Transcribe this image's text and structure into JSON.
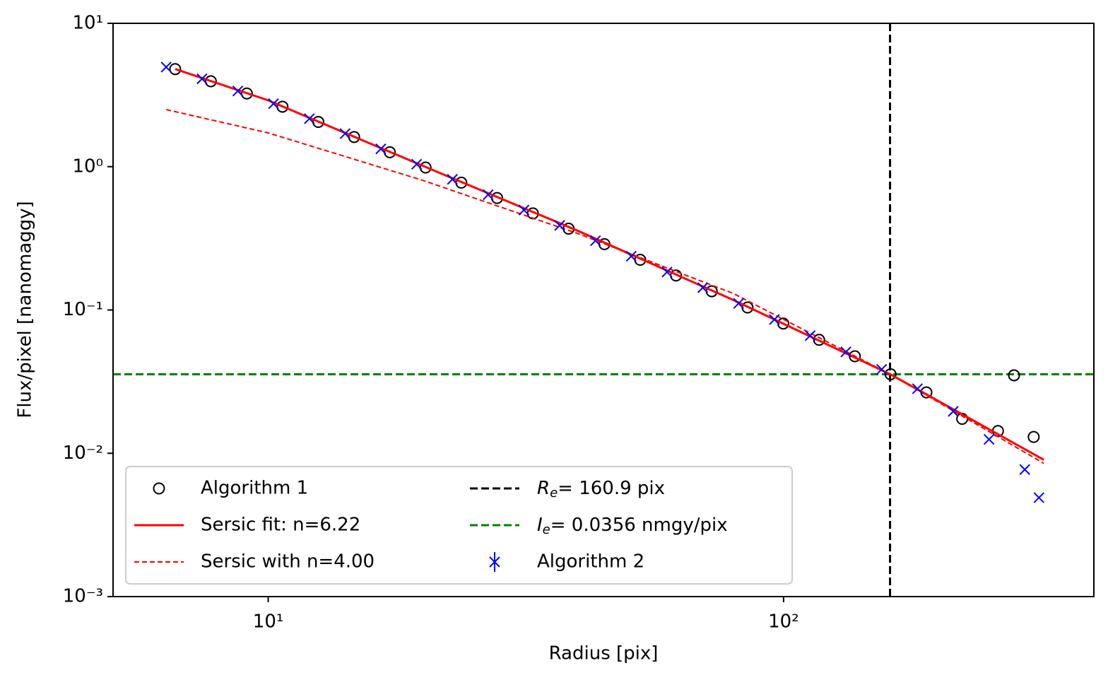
{
  "chart_data": {
    "type": "line",
    "xlabel": "Radius [pix]",
    "ylabel": "Flux/pixel [nanomaggy]",
    "xscale": "log",
    "yscale": "log",
    "xlim": [
      5,
      400
    ],
    "ylim": [
      0.001,
      10
    ],
    "xticks": [
      {
        "value": 10,
        "label": "10¹"
      },
      {
        "value": 100,
        "label": "10²"
      }
    ],
    "yticks": [
      {
        "value": 0.001,
        "label": "10⁻³"
      },
      {
        "value": 0.01,
        "label": "10⁻²"
      },
      {
        "value": 0.1,
        "label": "10⁻¹"
      },
      {
        "value": 1,
        "label": "10⁰"
      },
      {
        "value": 10,
        "label": "10¹"
      }
    ],
    "legend_loc": "lower left",
    "series": [
      {
        "name": "Algorithm 1",
        "color": "#000000",
        "marker": "circle",
        "linestyle": "none",
        "x": [
          6.6,
          7.74,
          9.09,
          10.66,
          12.51,
          14.68,
          17.22,
          20.2,
          23.7,
          27.81,
          32.63,
          38.28,
          44.92,
          52.7,
          61.84,
          72.55,
          85.13,
          99.88,
          117.2,
          137.5,
          161.3,
          189.3,
          222.1,
          260.6,
          280,
          305.7
        ],
        "values": [
          4.79,
          3.94,
          3.24,
          2.62,
          2.05,
          1.61,
          1.26,
          0.986,
          0.773,
          0.604,
          0.472,
          0.369,
          0.288,
          0.224,
          0.174,
          0.135,
          0.104,
          0.0804,
          0.0619,
          0.0475,
          0.0356,
          0.0266,
          0.0174,
          0.0143,
          0.035,
          0.013
        ]
      },
      {
        "name": "Sersic fit: n=6.22",
        "color": "#ff0000",
        "marker": "none",
        "linestyle": "solid",
        "x": [
          6.6,
          10,
          20,
          40,
          80,
          161,
          320
        ],
        "values": [
          4.8,
          2.9,
          1.01,
          0.355,
          0.117,
          0.0356,
          0.009
        ]
      },
      {
        "name": "Sersic with n=4.00",
        "color": "#ff0000",
        "marker": "none",
        "linestyle": "dashed",
        "x": [
          6.34,
          10,
          20,
          40,
          80,
          161,
          320
        ],
        "values": [
          2.5,
          1.72,
          0.8,
          0.34,
          0.13,
          0.0356,
          0.0085
        ]
      },
      {
        "name": "Algorithm 2",
        "color": "#0000ff",
        "marker": "x",
        "linestyle": "none",
        "x": [
          6.34,
          7.44,
          8.73,
          10.24,
          12.02,
          14.1,
          16.54,
          19.41,
          22.77,
          26.72,
          31.35,
          36.78,
          43.16,
          50.63,
          59.41,
          69.7,
          81.79,
          95.97,
          112.6,
          132.1,
          155,
          181.9,
          213.4,
          250.4,
          293.8,
          313
        ],
        "values": [
          4.95,
          4.1,
          3.37,
          2.75,
          2.16,
          1.7,
          1.33,
          1.04,
          0.815,
          0.637,
          0.498,
          0.389,
          0.304,
          0.237,
          0.184,
          0.143,
          0.111,
          0.0857,
          0.0662,
          0.051,
          0.0385,
          0.0282,
          0.0196,
          0.0125,
          0.0077,
          0.0049
        ]
      }
    ],
    "reference_lines": [
      {
        "orientation": "vertical",
        "value": 160.9,
        "color": "#000000",
        "label": [
          "R",
          "e",
          "= 160.9 pix"
        ]
      },
      {
        "orientation": "horizontal",
        "value": 0.0356,
        "color": "#008000",
        "label": [
          "I",
          "e",
          "= 0.0356 nmgy/pix"
        ]
      }
    ]
  }
}
